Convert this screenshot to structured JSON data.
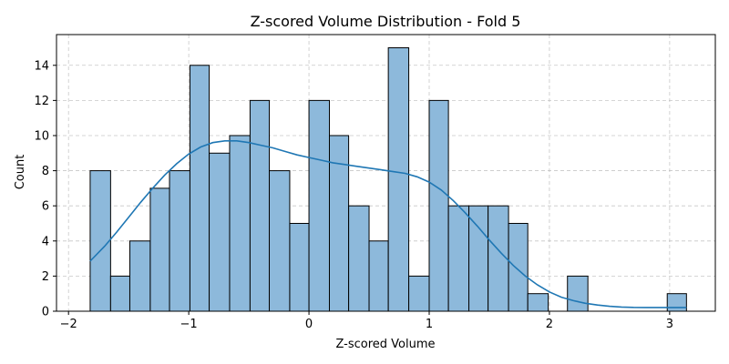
{
  "chart_data": {
    "type": "bar",
    "title": "Z-scored Volume Distribution - Fold 5",
    "xlabel": "Z-scored Volume",
    "ylabel": "Count",
    "xlim": [
      -2.1,
      3.38
    ],
    "ylim": [
      0,
      15.75
    ],
    "x_ticks": [
      -2,
      -1,
      0,
      1,
      2,
      3
    ],
    "y_ticks": [
      0,
      2,
      4,
      6,
      8,
      10,
      12,
      14
    ],
    "grid": true,
    "bins": [
      {
        "x0": -1.82,
        "x1": -1.65,
        "count": 8
      },
      {
        "x0": -1.65,
        "x1": -1.49,
        "count": 2
      },
      {
        "x0": -1.49,
        "x1": -1.32,
        "count": 4
      },
      {
        "x0": -1.32,
        "x1": -1.16,
        "count": 7
      },
      {
        "x0": -1.16,
        "x1": -0.99,
        "count": 8
      },
      {
        "x0": -0.99,
        "x1": -0.83,
        "count": 14
      },
      {
        "x0": -0.83,
        "x1": -0.66,
        "count": 9
      },
      {
        "x0": -0.66,
        "x1": -0.49,
        "count": 10
      },
      {
        "x0": -0.49,
        "x1": -0.33,
        "count": 12
      },
      {
        "x0": -0.33,
        "x1": -0.16,
        "count": 8
      },
      {
        "x0": -0.16,
        "x1": 0.0,
        "count": 5
      },
      {
        "x0": 0.0,
        "x1": 0.17,
        "count": 12
      },
      {
        "x0": 0.17,
        "x1": 0.33,
        "count": 10
      },
      {
        "x0": 0.33,
        "x1": 0.5,
        "count": 6
      },
      {
        "x0": 0.5,
        "x1": 0.66,
        "count": 4
      },
      {
        "x0": 0.66,
        "x1": 0.83,
        "count": 15
      },
      {
        "x0": 0.83,
        "x1": 1.0,
        "count": 2
      },
      {
        "x0": 1.0,
        "x1": 1.16,
        "count": 12
      },
      {
        "x0": 1.16,
        "x1": 1.33,
        "count": 6
      },
      {
        "x0": 1.33,
        "x1": 1.49,
        "count": 6
      },
      {
        "x0": 1.49,
        "x1": 1.66,
        "count": 6
      },
      {
        "x0": 1.66,
        "x1": 1.82,
        "count": 5
      },
      {
        "x0": 1.82,
        "x1": 1.99,
        "count": 1
      },
      {
        "x0": 2.15,
        "x1": 2.32,
        "count": 2
      },
      {
        "x0": 2.98,
        "x1": 3.14,
        "count": 1
      }
    ],
    "kde": {
      "x": [
        -1.82,
        -1.7,
        -1.6,
        -1.5,
        -1.4,
        -1.3,
        -1.2,
        -1.1,
        -1.0,
        -0.9,
        -0.8,
        -0.7,
        -0.6,
        -0.5,
        -0.4,
        -0.3,
        -0.2,
        -0.1,
        0.0,
        0.1,
        0.2,
        0.3,
        0.4,
        0.5,
        0.6,
        0.7,
        0.8,
        0.9,
        1.0,
        1.1,
        1.2,
        1.3,
        1.4,
        1.5,
        1.6,
        1.7,
        1.8,
        1.9,
        2.0,
        2.1,
        2.2,
        2.3,
        2.4,
        2.5,
        2.6,
        2.7,
        2.8,
        2.9,
        3.0,
        3.14
      ],
      "y": [
        2.85,
        3.7,
        4.5,
        5.35,
        6.2,
        7.0,
        7.75,
        8.4,
        8.95,
        9.35,
        9.6,
        9.7,
        9.7,
        9.6,
        9.45,
        9.3,
        9.1,
        8.9,
        8.75,
        8.6,
        8.45,
        8.35,
        8.25,
        8.15,
        8.05,
        7.95,
        7.85,
        7.65,
        7.35,
        6.9,
        6.3,
        5.6,
        4.85,
        4.05,
        3.3,
        2.6,
        2.0,
        1.5,
        1.1,
        0.8,
        0.6,
        0.45,
        0.35,
        0.28,
        0.24,
        0.22,
        0.21,
        0.21,
        0.21,
        0.21
      ]
    }
  }
}
